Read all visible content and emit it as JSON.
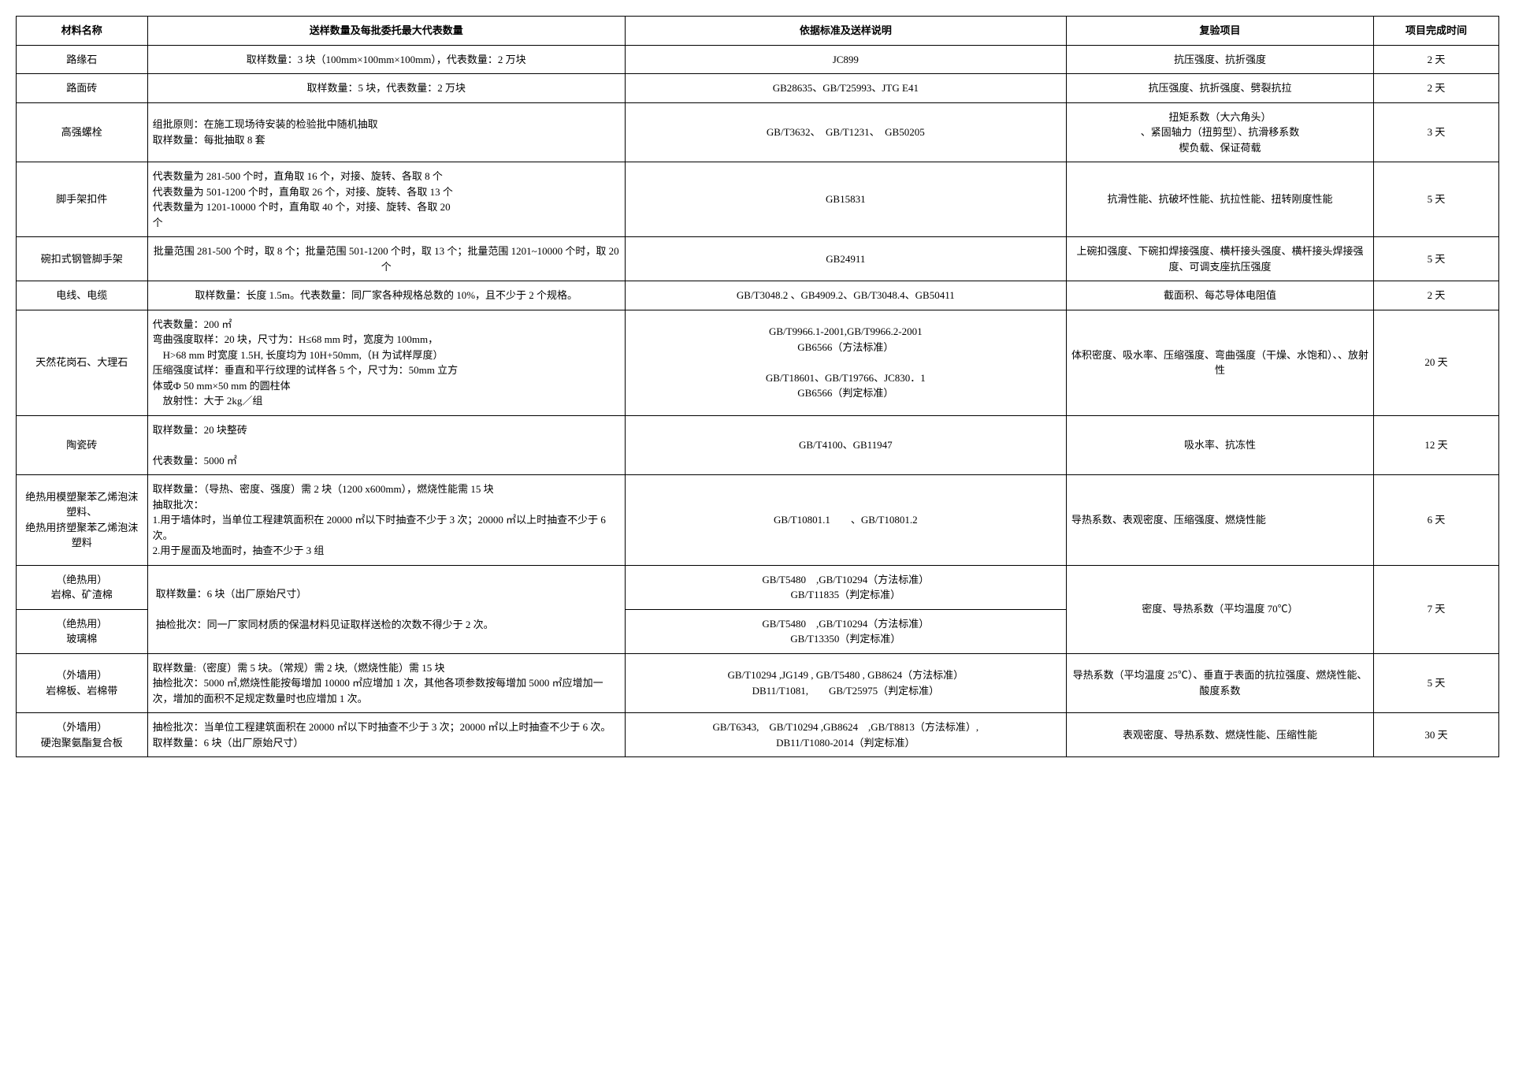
{
  "headers": {
    "name": "材料名称",
    "qty": "送样数量及每批委托最大代表数量",
    "std": "依据标准及送样说明",
    "test": "复验项目",
    "time": "项目完成时间"
  },
  "rows": [
    {
      "name": "路缘石",
      "qty": "取样数量：3 块（100mm×100mm×100mm），代表数量：2 万块",
      "qty_align": "center",
      "std": "JC899",
      "test": "抗压强度、抗折强度",
      "test_align": "center",
      "time": "2 天"
    },
    {
      "name": "路面砖",
      "qty": "取样数量：5 块，代表数量：2 万块",
      "qty_align": "center",
      "std": "GB28635、GB/T25993、JTG E41",
      "test": "抗压强度、抗折强度、劈裂抗拉",
      "test_align": "center",
      "time": "2 天"
    },
    {
      "name": "高强螺栓",
      "qty": "组批原则：在施工现场待安装的检验批中随机抽取\n取样数量：每批抽取 8 套",
      "qty_align": "left",
      "std": "GB/T3632、　GB/T1231、　GB50205",
      "test": "扭矩系数（大六角头）\n、紧固轴力（扭剪型）、抗滑移系数\n楔负载、保证荷载",
      "test_align": "center",
      "time": "3 天"
    },
    {
      "name": "脚手架扣件",
      "qty": "代表数量为 281-500 个时，直角取 16 个，对接、旋转、各取 8 个\n代表数量为 501-1200 个时，直角取 26 个，对接、旋转、各取 13 个\n代表数量为 1201-10000 个时，直角取 40 个，对接、旋转、各取 20\n个",
      "qty_align": "left",
      "std": "GB15831",
      "test": "抗滑性能、抗破坏性能、抗拉性能、扭转刚度性能",
      "test_align": "center",
      "time": "5 天"
    },
    {
      "name": "碗扣式钢管脚手架",
      "qty": "批量范围 281-500 个时，取 8 个；批量范围 501-1200 个时，取 13 个；批量范围 1201~10000 个时，取 20 个",
      "qty_align": "center",
      "std": "GB24911",
      "test": "上碗扣强度、下碗扣焊接强度、横杆接头强度、横杆接头焊接强度、可调支座抗压强度",
      "test_align": "center",
      "time": "5 天"
    },
    {
      "name": "电线、电缆",
      "qty": "取样数量：长度 1.5m。代表数量：同厂家各种规格总数的 10%，且不少于 2 个规格。",
      "qty_align": "center",
      "std": "GB/T3048.2 、GB4909.2、GB/T3048.4、GB50411",
      "test": "截面积、每芯导体电阻值",
      "test_align": "center",
      "time": "2 天"
    },
    {
      "name": "天然花岗石、大理石",
      "qty": "代表数量：200 ㎡\n弯曲强度取样：20 块，尺寸为：H≤68 mm 时，宽度为 100mm，\n　H>68 mm 时宽度 1.5H, 长度均为 10H+50mm,（H 为试样厚度）\n压缩强度试样：垂直和平行纹理的试样各 5 个，尺寸为：50mm 立方\n体或Ф 50 mm×50 mm 的圆柱体\n　放射性：大于 2kg／组",
      "qty_align": "left",
      "std": "GB/T9966.1-2001,GB/T9966.2-2001\nGB6566（方法标准）\n\nGB/T18601、GB/T19766、JC830．1\nGB6566（判定标准）",
      "test": "体积密度、吸水率、压缩强度、弯曲强度（干燥、水饱和）、、放射性",
      "test_align": "center",
      "time": "20 天"
    },
    {
      "name": "陶瓷砖",
      "qty": "取样数量：20 块整砖\n\n代表数量：5000 ㎡",
      "qty_align": "left",
      "std": "GB/T4100、GB11947",
      "test": "吸水率、抗冻性",
      "test_align": "center",
      "time": "12 天"
    },
    {
      "name": "绝热用模塑聚苯乙烯泡沫塑料、\n绝热用挤塑聚苯乙烯泡沫塑料",
      "qty": "取样数量：（导热、密度、强度）需 2 块（1200 x600mm），燃烧性能需 15 块\n抽取批次：\n1.用于墙体时，当单位工程建筑面积在 20000 ㎡以下时抽查不少于 3 次；20000 ㎡以上时抽查不少于 6 次。\n2.用于屋面及地面时，抽查不少于 3 组",
      "qty_align": "left",
      "std": "GB/T10801.1　　、GB/T10801.2",
      "test": "导热系数、表观密度、压缩强度、燃烧性能",
      "test_align": "left",
      "time": "6 天"
    }
  ],
  "merged_rock": {
    "row1_name": "（绝热用）\n岩棉、矿渣棉",
    "row2_name": "（绝热用）\n玻璃棉",
    "qty": "取样数量：6 块（出厂原始尺寸）\n\n抽检批次：同一厂家同材质的保温材料见证取样送检的次数不得少于 2 次。",
    "std1": "GB/T5480　,GB/T10294（方法标准）\nGB/T11835（判定标准）",
    "std2": "GB/T5480　,GB/T10294（方法标准）\nGB/T13350（判定标准）",
    "test": "密度、导热系数（平均温度 70℃）",
    "time": "7 天"
  },
  "last_rows": [
    {
      "name": "（外墙用）\n岩棉板、岩棉带",
      "qty": "取样数量:（密度）需 5 块。（常规）需 2 块,（燃烧性能）需 15 块\n抽检批次：5000 ㎡,燃烧性能按每增加 10000 ㎡应增加 1 次，其他各项参数按每增加 5000 ㎡应增加一次，增加的面积不足规定数量时也应增加 1 次。",
      "qty_align": "left",
      "std": "GB/T10294 ,JG149 , GB/T5480 , GB8624（方法标准）\nDB11/T1081,　　GB/T25975（判定标准）",
      "test": "导热系数（平均温度 25℃）、垂直于表面的抗拉强度、燃烧性能、酸度系数",
      "test_align": "center",
      "time": "5 天"
    },
    {
      "name": "（外墙用）\n硬泡聚氨酯复合板",
      "qty": "抽检批次：当单位工程建筑面积在 20000 ㎡以下时抽查不少于 3 次；20000 ㎡以上时抽查不少于 6 次。\n取样数量：6 块（出厂原始尺寸）",
      "qty_align": "left",
      "std": "GB/T6343,　GB/T10294 ,GB8624　,GB/T8813（方法标准）,\nDB11/T1080-2014（判定标准）",
      "test": "表观密度、导热系数、燃烧性能、压缩性能",
      "test_align": "center",
      "time": "30 天"
    }
  ]
}
